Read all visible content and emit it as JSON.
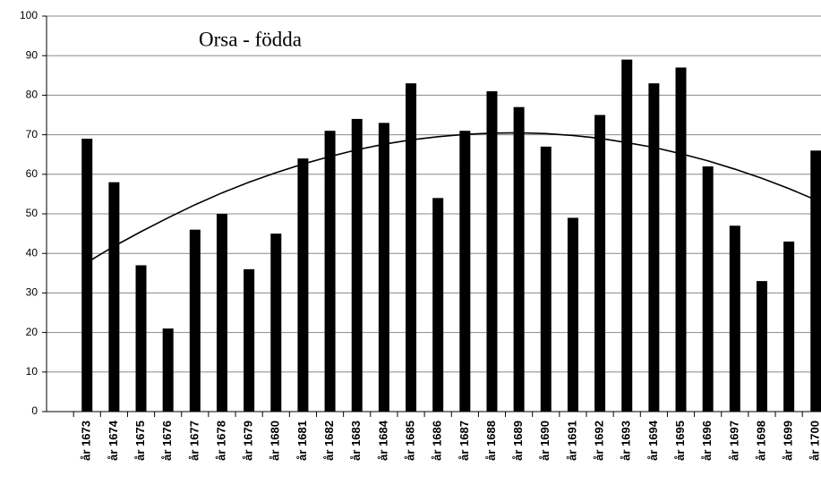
{
  "chart_data": {
    "type": "bar",
    "title": "Orsa - födda",
    "categories": [
      "år 1673",
      "år 1674",
      "år 1675",
      "år 1676",
      "år 1677",
      "år 1678",
      "år 1679",
      "år 1680",
      "år 1681",
      "år 1682",
      "år 1683",
      "år 1684",
      "år 1685",
      "år 1686",
      "år 1687",
      "år 1688",
      "år 1689",
      "år 1690",
      "år 1691",
      "år 1692",
      "år 1693",
      "år 1694",
      "år 1695",
      "år 1696",
      "år 1697",
      "år 1698",
      "år 1699",
      "år 1700"
    ],
    "series": [
      {
        "type": "bar",
        "color": "#000000",
        "values": [
          69,
          58,
          37,
          21,
          46,
          50,
          36,
          45,
          64,
          71,
          74,
          73,
          83,
          54,
          71,
          81,
          77,
          67,
          49,
          75,
          89,
          83,
          87,
          62,
          47,
          33,
          43,
          66
        ]
      },
      {
        "type": "line",
        "color": "#000000",
        "values": [
          37.7,
          41.8,
          45.5,
          49.0,
          52.3,
          55.3,
          58.0,
          60.4,
          62.6,
          64.5,
          66.2,
          67.6,
          68.7,
          69.5,
          70.1,
          70.4,
          70.5,
          70.3,
          69.8,
          69.1,
          68.0,
          66.8,
          65.2,
          63.4,
          61.3,
          59.0,
          56.4,
          53.5
        ]
      }
    ],
    "ylim": [
      0,
      100
    ],
    "yticks": [
      0,
      10,
      20,
      30,
      40,
      50,
      60,
      70,
      80,
      90,
      100
    ],
    "grid": true
  }
}
